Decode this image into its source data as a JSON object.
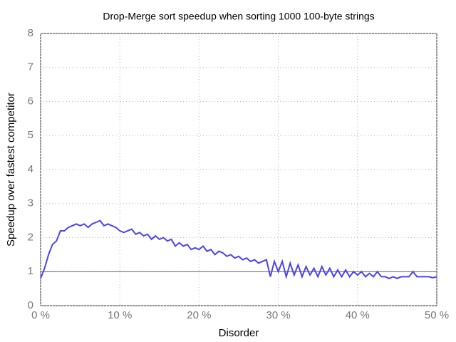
{
  "chart_data": {
    "type": "line",
    "title": "Drop-Merge sort speedup when sorting 1000 100-byte strings",
    "x_label": "Disorder",
    "y_label": "Speedup over fastest competitor",
    "xlim": [
      0,
      50
    ],
    "ylim": [
      0,
      8
    ],
    "xticks": [
      {
        "value": 0,
        "label": "0 %"
      },
      {
        "value": 10,
        "label": "10 %"
      },
      {
        "value": 20,
        "label": "20 %"
      },
      {
        "value": 30,
        "label": "30 %"
      },
      {
        "value": 40,
        "label": "40 %"
      },
      {
        "value": 50,
        "label": "50 %"
      }
    ],
    "yticks": [
      0,
      1,
      2,
      3,
      4,
      5,
      6,
      7,
      8
    ],
    "grid": true,
    "reference_line": 1,
    "x": [
      0,
      0.5,
      1,
      1.5,
      2,
      2.5,
      3,
      3.5,
      4,
      4.5,
      5,
      5.5,
      6,
      6.5,
      7,
      7.5,
      8,
      8.5,
      9,
      9.5,
      10,
      10.5,
      11,
      11.5,
      12,
      12.5,
      13,
      13.5,
      14,
      14.5,
      15,
      15.5,
      16,
      16.5,
      17,
      17.5,
      18,
      18.5,
      19,
      19.5,
      20,
      20.5,
      21,
      21.5,
      22,
      22.5,
      23,
      23.5,
      24,
      24.5,
      25,
      25.5,
      26,
      26.5,
      27,
      27.5,
      28,
      28.5,
      29,
      29.5,
      30,
      30.5,
      31,
      31.5,
      32,
      32.5,
      33,
      33.5,
      34,
      34.5,
      35,
      35.5,
      36,
      36.5,
      37,
      37.5,
      38,
      38.5,
      39,
      39.5,
      40,
      40.5,
      41,
      41.5,
      42,
      42.5,
      43,
      43.5,
      44,
      44.5,
      45,
      45.5,
      46,
      46.5,
      47,
      47.5,
      48,
      48.5,
      49,
      49.5,
      50
    ],
    "series": [
      {
        "color": "#4a44f0",
        "values": [
          0.8,
          1.1,
          1.5,
          1.8,
          1.9,
          2.2,
          2.2,
          2.3,
          2.35,
          2.4,
          2.35,
          2.4,
          2.3,
          2.4,
          2.45,
          2.5,
          2.35,
          2.4,
          2.35,
          2.3,
          2.2,
          2.15,
          2.2,
          2.25,
          2.1,
          2.15,
          2.05,
          2.1,
          1.95,
          2.05,
          1.95,
          2.0,
          1.9,
          1.95,
          1.75,
          1.85,
          1.75,
          1.8,
          1.65,
          1.7,
          1.65,
          1.75,
          1.6,
          1.65,
          1.5,
          1.6,
          1.55,
          1.45,
          1.5,
          1.4,
          1.45,
          1.35,
          1.4,
          1.3,
          1.35,
          1.25,
          1.3,
          1.35,
          0.85,
          1.3,
          1.0,
          1.3,
          0.85,
          1.25,
          0.9,
          1.2,
          0.85,
          1.15,
          0.9,
          1.1,
          0.85,
          1.15,
          0.9,
          1.1,
          0.85,
          1.05,
          0.85,
          1.05,
          0.85,
          1.0,
          0.9,
          1.0,
          0.85,
          0.95,
          0.85,
          1.0,
          0.85,
          0.85,
          0.8,
          0.85,
          0.8,
          0.85,
          0.85,
          0.85,
          1.0,
          0.85,
          0.85,
          0.85,
          0.85,
          0.82,
          0.85
        ]
      }
    ]
  }
}
